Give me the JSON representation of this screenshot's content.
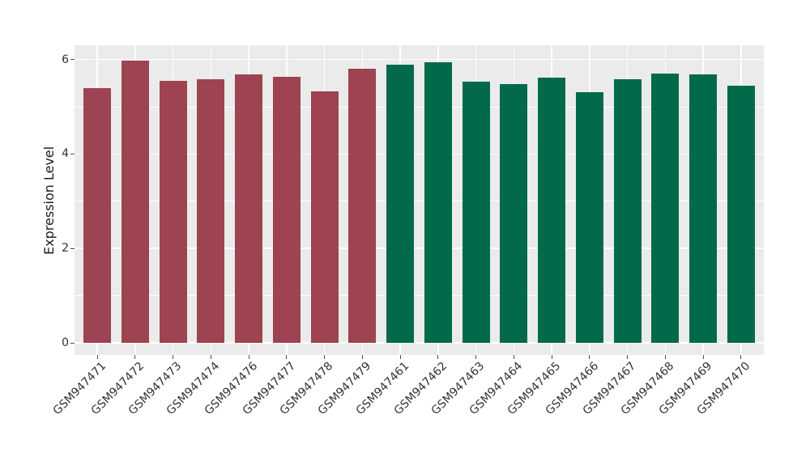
{
  "chart_data": {
    "type": "bar",
    "title": "",
    "xlabel": "",
    "ylabel": "Expression Level",
    "ylim": [
      0,
      6.3
    ],
    "grid": true,
    "legend_position": "none",
    "yticks": [
      {
        "label": "0",
        "value": 0
      },
      {
        "label": "2",
        "value": 2
      },
      {
        "label": "4",
        "value": 4
      },
      {
        "label": "6",
        "value": 6
      }
    ],
    "minor_gridline_values": [
      1,
      3,
      5
    ],
    "major_gridline_values": [
      0,
      2,
      4,
      6
    ],
    "bars": [
      {
        "label": "GSM947471",
        "value": 5.39,
        "group": "red"
      },
      {
        "label": "GSM947472",
        "value": 5.98,
        "group": "red"
      },
      {
        "label": "GSM947473",
        "value": 5.55,
        "group": "red"
      },
      {
        "label": "GSM947474",
        "value": 5.59,
        "group": "red"
      },
      {
        "label": "GSM947476",
        "value": 5.69,
        "group": "red"
      },
      {
        "label": "GSM947477",
        "value": 5.64,
        "group": "red"
      },
      {
        "label": "GSM947478",
        "value": 5.32,
        "group": "red"
      },
      {
        "label": "GSM947479",
        "value": 5.8,
        "group": "red"
      },
      {
        "label": "GSM947461",
        "value": 5.89,
        "group": "green"
      },
      {
        "label": "GSM947462",
        "value": 5.95,
        "group": "green"
      },
      {
        "label": "GSM947463",
        "value": 5.53,
        "group": "green"
      },
      {
        "label": "GSM947464",
        "value": 5.48,
        "group": "green"
      },
      {
        "label": "GSM947465",
        "value": 5.61,
        "group": "green"
      },
      {
        "label": "GSM947466",
        "value": 5.3,
        "group": "green"
      },
      {
        "label": "GSM947467",
        "value": 5.59,
        "group": "green"
      },
      {
        "label": "GSM947468",
        "value": 5.7,
        "group": "green"
      },
      {
        "label": "GSM947469",
        "value": 5.68,
        "group": "green"
      },
      {
        "label": "GSM947470",
        "value": 5.45,
        "group": "green"
      }
    ],
    "group_colors": {
      "red": "#9E4352",
      "green": "#026A4B"
    }
  },
  "colors": {
    "panel_background": "#EBEBEB",
    "figure_background": "#FFFFFF",
    "gridline": "#FFFFFF",
    "tick_mark": "#4D4D4D",
    "tick_text": "#333333",
    "axis_title_text": "#1A1A1A"
  }
}
